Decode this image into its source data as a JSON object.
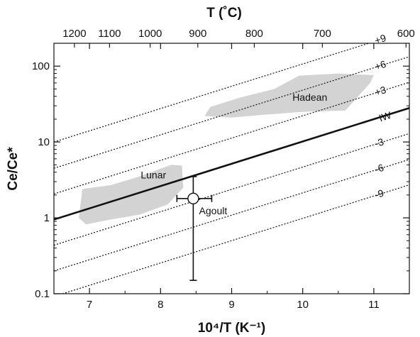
{
  "chart_data": {
    "type": "line",
    "title": "",
    "xlabel_bottom": "10⁴/T (K⁻¹)",
    "xlabel_top": "T (˚C)",
    "ylabel": "Ce/Ce*",
    "xlim": [
      6.5,
      11.5
    ],
    "ylim": [
      0.1,
      200
    ],
    "y_scale": "log",
    "grid": false,
    "bottom_ticks": [
      7,
      8,
      9,
      10,
      11
    ],
    "top_ticks": [
      1200,
      1100,
      1000,
      900,
      800,
      700,
      600
    ],
    "y_ticks": [
      {
        "value": 0.1,
        "label": "0.1"
      },
      {
        "value": 1,
        "label": "1"
      },
      {
        "value": 10,
        "label": "10"
      },
      {
        "value": 100,
        "label": "100"
      }
    ],
    "iw_line": {
      "label": "IW",
      "style": "solid",
      "points": [
        [
          6.5,
          0.95
        ],
        [
          11.0,
          20
        ]
      ]
    },
    "buffer_lines": [
      {
        "label": "+9",
        "style": "dotted",
        "points": [
          [
            6.5,
            10.0
          ],
          [
            11.0,
            210
          ]
        ]
      },
      {
        "label": "+6",
        "style": "dotted",
        "points": [
          [
            6.5,
            4.5
          ],
          [
            11.0,
            95
          ]
        ]
      },
      {
        "label": "+3",
        "style": "dotted",
        "points": [
          [
            6.5,
            2.07
          ],
          [
            11.0,
            43.6
          ]
        ]
      },
      {
        "label": "-3",
        "style": "dotted",
        "points": [
          [
            6.5,
            0.436
          ],
          [
            11.0,
            9.2
          ]
        ]
      },
      {
        "label": "-6",
        "style": "dotted",
        "points": [
          [
            6.5,
            0.2
          ],
          [
            11.0,
            4.2
          ]
        ]
      },
      {
        "label": "-9",
        "style": "dotted",
        "points": [
          [
            6.5,
            0.092
          ],
          [
            11.0,
            1.94
          ]
        ]
      }
    ],
    "regions": [
      {
        "label": "Hadean",
        "color": "#d3d3d3",
        "points": [
          [
            8.62,
            22
          ],
          [
            8.7,
            29
          ],
          [
            9.1,
            38
          ],
          [
            9.6,
            50
          ],
          [
            9.95,
            75
          ],
          [
            10.5,
            80
          ],
          [
            11.0,
            76
          ],
          [
            10.95,
            60
          ],
          [
            10.8,
            42
          ],
          [
            10.6,
            26
          ],
          [
            10.0,
            25
          ],
          [
            9.5,
            23
          ],
          [
            9.0,
            21
          ]
        ]
      },
      {
        "label": "Lunar",
        "color": "#d3d3d3",
        "points": [
          [
            6.85,
            1.0
          ],
          [
            6.9,
            2.4
          ],
          [
            7.3,
            2.7
          ],
          [
            7.7,
            3.5
          ],
          [
            8.15,
            5.0
          ],
          [
            8.3,
            4.9
          ],
          [
            8.32,
            2.5
          ],
          [
            8.1,
            1.5
          ],
          [
            7.7,
            1.1
          ],
          [
            7.3,
            0.95
          ],
          [
            6.95,
            0.82
          ]
        ]
      }
    ],
    "points": [
      {
        "label": "Agoult",
        "x": 8.46,
        "y": 1.8,
        "y_low": 0.15,
        "y_high": 3.5,
        "x_low": 8.23,
        "x_high": 8.72
      }
    ]
  }
}
